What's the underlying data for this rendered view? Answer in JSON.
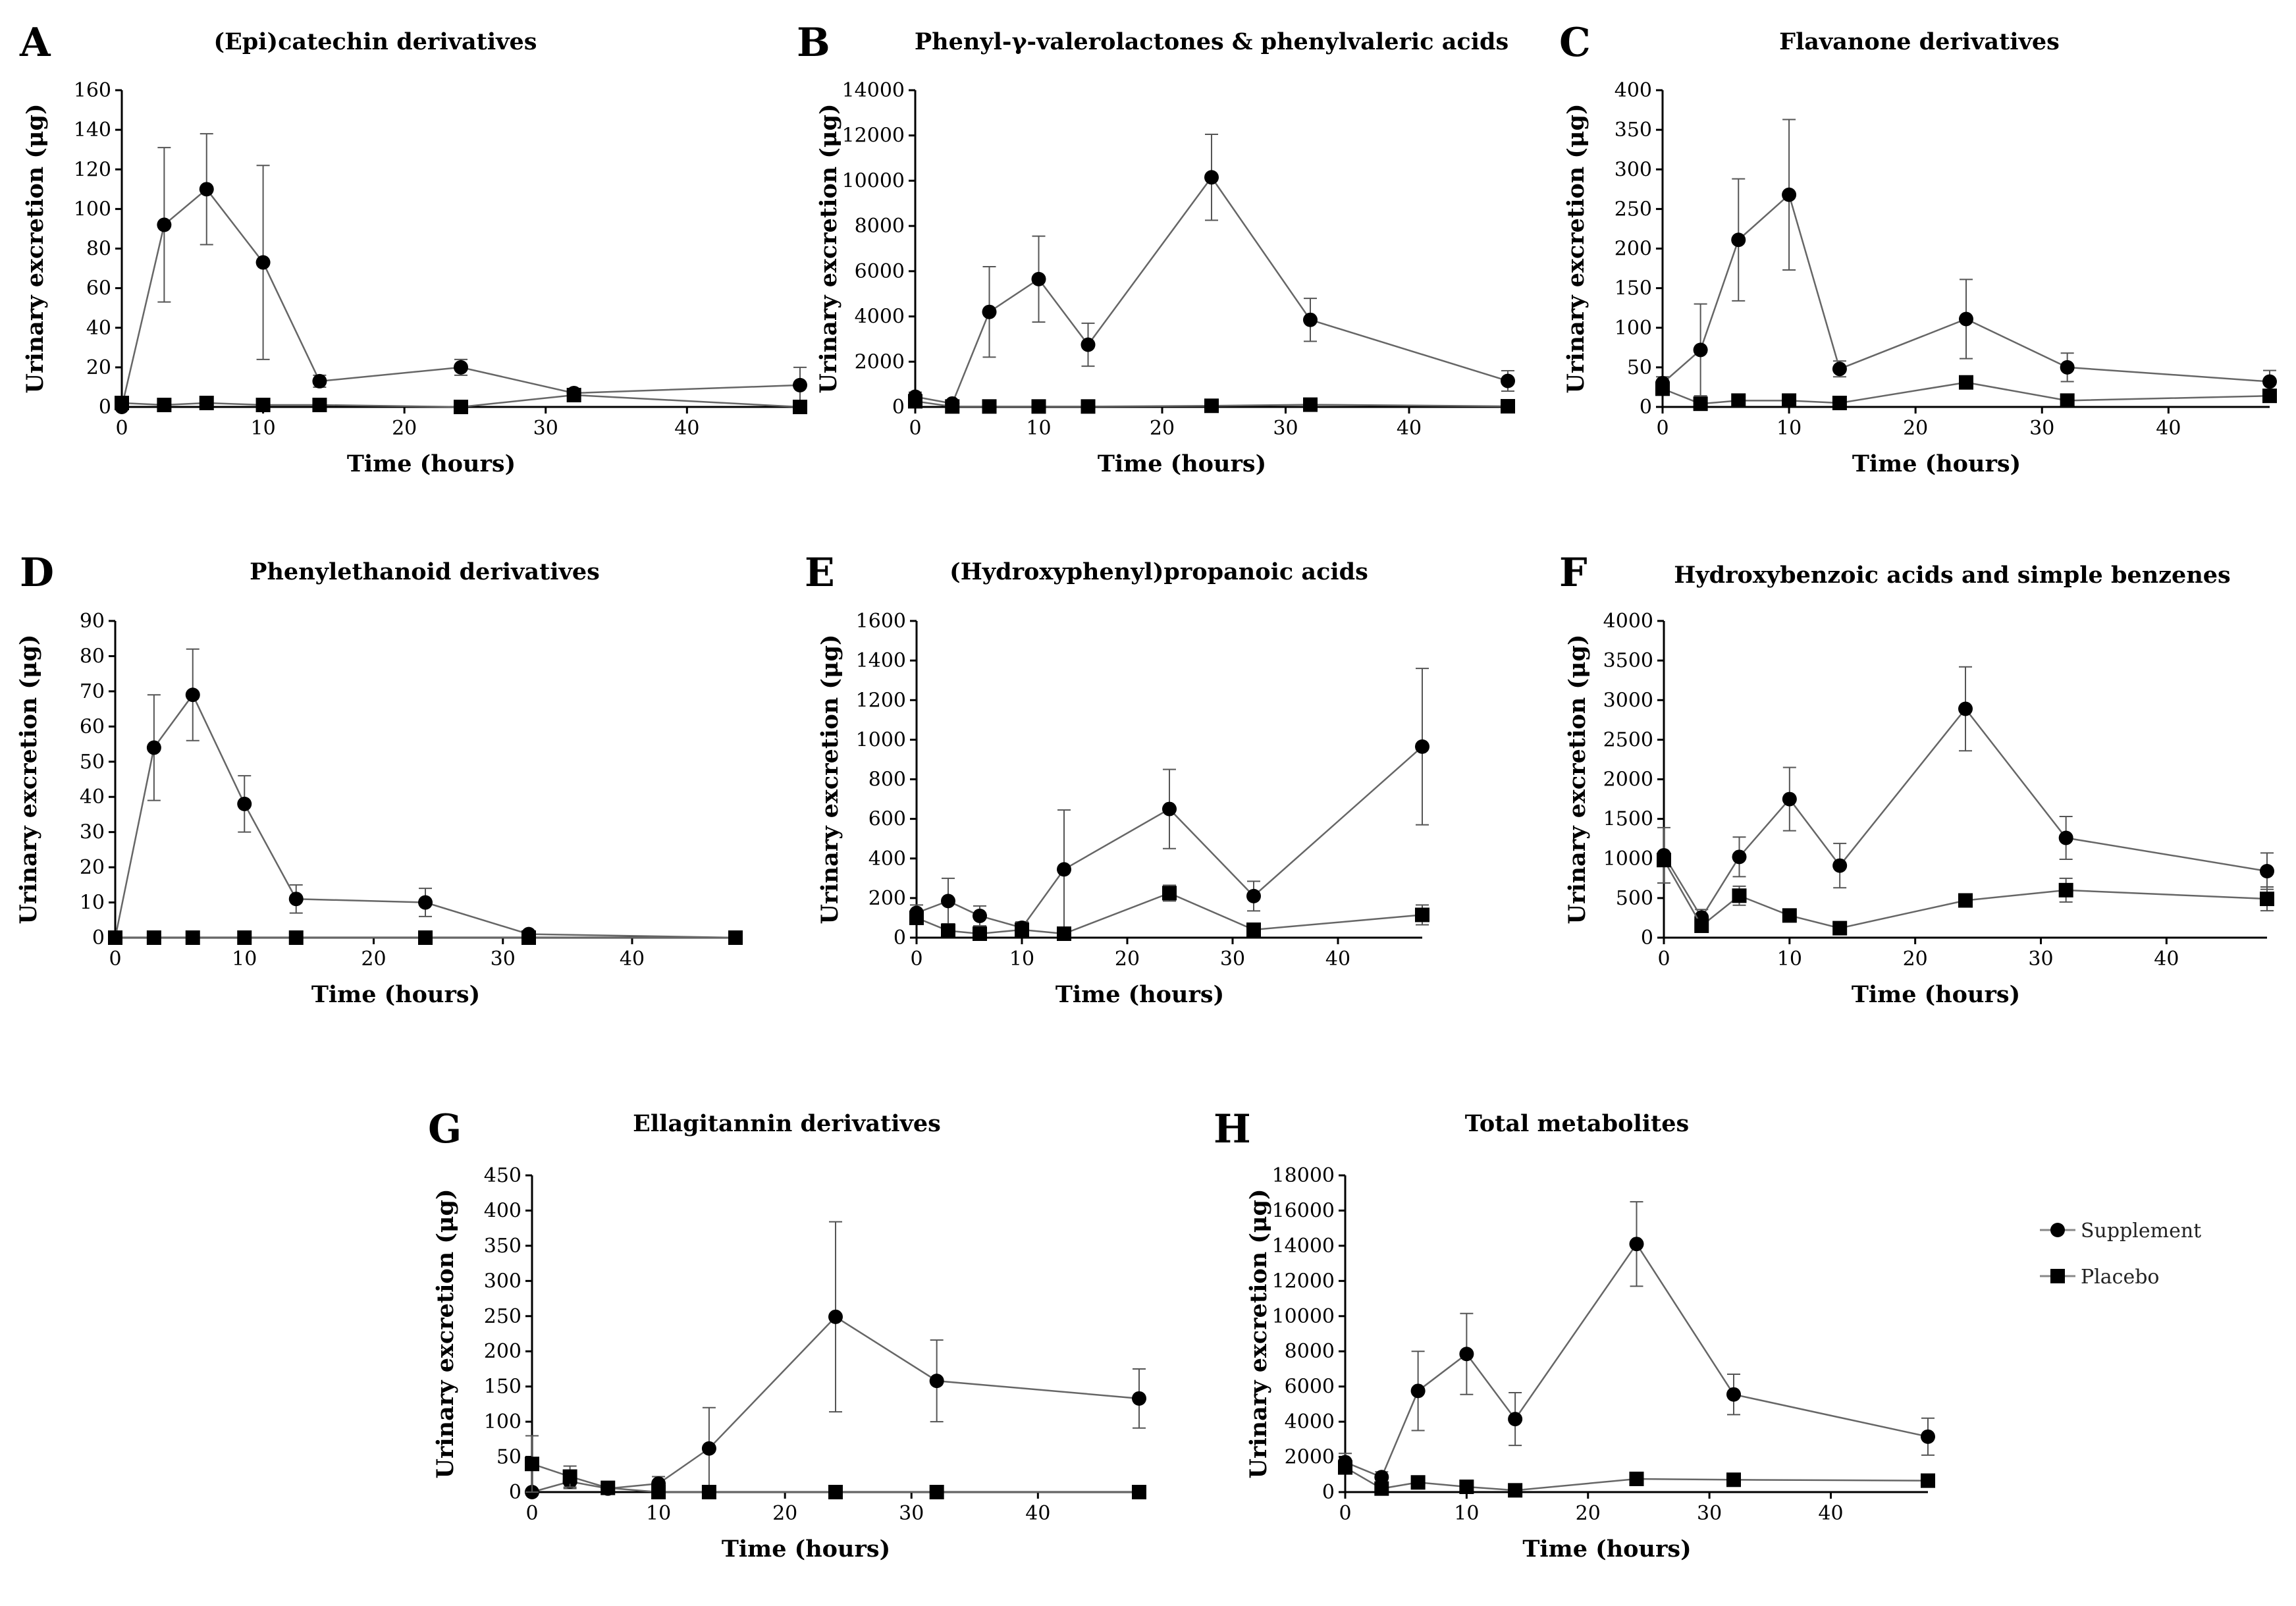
{
  "figure": {
    "legend": [
      {
        "label": "Supplement",
        "marker": "circle"
      },
      {
        "label": "Placebo",
        "marker": "square"
      }
    ]
  },
  "chart_data": [
    {
      "letter": "A",
      "type": "line",
      "title": "(Epi)catechin derivatives",
      "xlabel": "Time (hours)",
      "ylabel": "Urinary excretion (μg)",
      "xlim": [
        0,
        48
      ],
      "ylim": [
        0,
        160
      ],
      "xticks": [
        0,
        10,
        20,
        30,
        40
      ],
      "yticks": [
        0,
        20,
        40,
        60,
        80,
        100,
        120,
        140,
        160
      ],
      "x": [
        0,
        3,
        6,
        10,
        14,
        24,
        32,
        48
      ],
      "series": [
        {
          "name": "Supplement",
          "marker": "circle",
          "values": [
            0,
            92,
            110,
            73,
            13,
            20,
            7,
            11
          ],
          "err": [
            0,
            39,
            28,
            49,
            3,
            4,
            2,
            9
          ]
        },
        {
          "name": "Placebo",
          "marker": "square",
          "values": [
            2,
            1,
            2,
            1,
            1,
            0,
            6,
            0
          ],
          "err": [
            0,
            0,
            0,
            0,
            0,
            0,
            1,
            0
          ]
        }
      ]
    },
    {
      "letter": "B",
      "type": "line",
      "title": "Phenyl-γ-valerolactones & phenylvaleric acids",
      "xlabel": "Time (hours)",
      "ylabel": "Urinary excretion (μg)",
      "xlim": [
        0,
        48
      ],
      "ylim": [
        0,
        14000
      ],
      "xticks": [
        0,
        10,
        20,
        30,
        40
      ],
      "yticks": [
        0,
        2000,
        4000,
        6000,
        8000,
        10000,
        12000,
        14000
      ],
      "x": [
        0,
        3,
        6,
        10,
        14,
        24,
        32,
        48
      ],
      "series": [
        {
          "name": "Supplement",
          "marker": "circle",
          "values": [
            450,
            150,
            4200,
            5650,
            2750,
            10150,
            3850,
            1150
          ],
          "err": [
            200,
            100,
            2000,
            1900,
            950,
            1900,
            950,
            450
          ]
        },
        {
          "name": "Placebo",
          "marker": "square",
          "values": [
            250,
            20,
            20,
            20,
            20,
            50,
            100,
            30
          ],
          "err": [
            0,
            0,
            0,
            0,
            0,
            0,
            0,
            0
          ]
        }
      ]
    },
    {
      "letter": "C",
      "type": "line",
      "title": "Flavanone derivatives",
      "xlabel": "Time (hours)",
      "ylabel": "Urinary excretion (μg)",
      "xlim": [
        0,
        48
      ],
      "ylim": [
        0,
        400
      ],
      "xticks": [
        0,
        10,
        20,
        30,
        40
      ],
      "yticks": [
        0,
        50,
        100,
        150,
        200,
        250,
        300,
        350,
        400
      ],
      "x": [
        0,
        3,
        6,
        10,
        14,
        24,
        32,
        48
      ],
      "series": [
        {
          "name": "Supplement",
          "marker": "circle",
          "values": [
            30,
            72,
            211,
            268,
            48,
            111,
            50,
            32
          ],
          "err": [
            8,
            58,
            77,
            95,
            10,
            50,
            18,
            14
          ]
        },
        {
          "name": "Placebo",
          "marker": "square",
          "values": [
            23,
            4,
            8,
            8,
            5,
            31,
            8,
            14
          ],
          "err": [
            8,
            0,
            0,
            0,
            0,
            8,
            0,
            0
          ]
        }
      ]
    },
    {
      "letter": "D",
      "type": "line",
      "title": "Phenylethanoid derivatives",
      "xlabel": "Time (hours)",
      "ylabel": "Urinary excretion (μg)",
      "xlim": [
        0,
        48
      ],
      "ylim": [
        0,
        90
      ],
      "xticks": [
        0,
        10,
        20,
        30,
        40
      ],
      "yticks": [
        0,
        10,
        20,
        30,
        40,
        50,
        60,
        70,
        80,
        90
      ],
      "x": [
        0,
        3,
        6,
        10,
        14,
        24,
        32,
        48
      ],
      "series": [
        {
          "name": "Supplement",
          "marker": "circle",
          "values": [
            0,
            54,
            69,
            38,
            11,
            10,
            1,
            0
          ],
          "err": [
            0,
            15,
            13,
            8,
            4,
            4,
            0,
            0
          ]
        },
        {
          "name": "Placebo",
          "marker": "square",
          "values": [
            0,
            0,
            0,
            0,
            0,
            0,
            0,
            0
          ],
          "err": [
            0,
            0,
            0,
            0,
            0,
            0,
            0,
            0
          ]
        }
      ]
    },
    {
      "letter": "E",
      "type": "line",
      "title": "(Hydroxyphenyl)propanoic acids",
      "xlabel": "Time (hours)",
      "ylabel": "Urinary excretion (μg)",
      "xlim": [
        0,
        48
      ],
      "ylim": [
        0,
        1600
      ],
      "xticks": [
        0,
        10,
        20,
        30,
        40
      ],
      "yticks": [
        0,
        200,
        400,
        600,
        800,
        1000,
        1200,
        1400,
        1600
      ],
      "x": [
        0,
        3,
        6,
        10,
        14,
        24,
        32,
        48
      ],
      "series": [
        {
          "name": "Supplement",
          "marker": "circle",
          "values": [
            125,
            185,
            110,
            50,
            345,
            650,
            210,
            965
          ],
          "err": [
            40,
            115,
            50,
            30,
            300,
            200,
            75,
            395
          ]
        },
        {
          "name": "Placebo",
          "marker": "square",
          "values": [
            100,
            35,
            20,
            40,
            20,
            225,
            40,
            115
          ],
          "err": [
            0,
            0,
            0,
            0,
            0,
            40,
            0,
            50
          ]
        }
      ]
    },
    {
      "letter": "F",
      "type": "line",
      "title": "Hydroxybenzoic acids and simple benzenes",
      "xlabel": "Time (hours)",
      "ylabel": "Urinary excretion (μg)",
      "xlim": [
        0,
        48
      ],
      "ylim": [
        0,
        4000
      ],
      "xticks": [
        0,
        10,
        20,
        30,
        40
      ],
      "yticks": [
        0,
        500,
        1000,
        1500,
        2000,
        2500,
        3000,
        3500,
        4000
      ],
      "x": [
        0,
        3,
        6,
        10,
        14,
        24,
        32,
        48
      ],
      "series": [
        {
          "name": "Supplement",
          "marker": "circle",
          "values": [
            1040,
            255,
            1020,
            1750,
            910,
            2890,
            1260,
            840
          ],
          "err": [
            350,
            100,
            250,
            400,
            280,
            530,
            270,
            230
          ]
        },
        {
          "name": "Placebo",
          "marker": "square",
          "values": [
            980,
            150,
            530,
            280,
            120,
            470,
            600,
            490
          ],
          "err": [
            0,
            0,
            120,
            0,
            0,
            80,
            150,
            150
          ]
        }
      ]
    },
    {
      "letter": "G",
      "type": "line",
      "title": "Ellagitannin derivatives",
      "xlabel": "Time (hours)",
      "ylabel": "Urinary excretion (μg)",
      "xlim": [
        0,
        48
      ],
      "ylim": [
        0,
        450
      ],
      "xticks": [
        0,
        10,
        20,
        30,
        40
      ],
      "yticks": [
        0,
        50,
        100,
        150,
        200,
        250,
        300,
        350,
        400,
        450
      ],
      "x": [
        0,
        3,
        6,
        10,
        14,
        24,
        32,
        48
      ],
      "series": [
        {
          "name": "Supplement",
          "marker": "circle",
          "values": [
            0,
            15,
            5,
            12,
            62,
            249,
            158,
            133
          ],
          "err": [
            0,
            10,
            4,
            10,
            58,
            135,
            58,
            42
          ]
        },
        {
          "name": "Placebo",
          "marker": "square",
          "values": [
            40,
            22,
            6,
            0,
            0,
            0,
            0,
            0
          ],
          "err": [
            40,
            15,
            0,
            0,
            0,
            0,
            0,
            0
          ]
        }
      ]
    },
    {
      "letter": "H",
      "type": "line",
      "title": "Total metabolites",
      "xlabel": "Time (hours)",
      "ylabel": "Urinary excretion (μg)",
      "xlim": [
        0,
        48
      ],
      "ylim": [
        0,
        18000
      ],
      "xticks": [
        0,
        10,
        20,
        30,
        40
      ],
      "yticks": [
        0,
        2000,
        4000,
        6000,
        8000,
        10000,
        12000,
        14000,
        16000,
        18000
      ],
      "x": [
        0,
        3,
        6,
        10,
        14,
        24,
        32,
        48
      ],
      "series": [
        {
          "name": "Supplement",
          "marker": "circle",
          "values": [
            1700,
            850,
            5750,
            7850,
            4150,
            14100,
            5550,
            3150
          ],
          "err": [
            500,
            300,
            2250,
            2300,
            1500,
            2400,
            1150,
            1050
          ]
        },
        {
          "name": "Placebo",
          "marker": "square",
          "values": [
            1400,
            200,
            550,
            300,
            100,
            750,
            700,
            650
          ],
          "err": [
            0,
            0,
            0,
            0,
            0,
            0,
            0,
            0
          ]
        }
      ]
    }
  ]
}
